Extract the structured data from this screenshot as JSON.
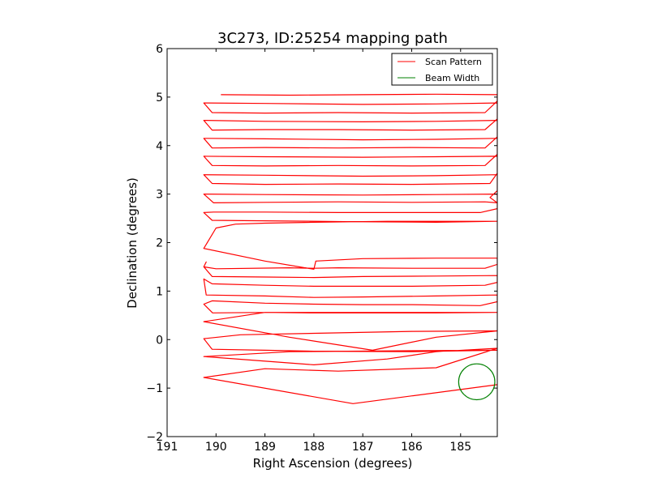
{
  "chart_data": {
    "type": "line",
    "title": "3C273, ID:25254 mapping path",
    "xlabel": "Right Ascension (degrees)",
    "ylabel": "Declination (degrees)",
    "xlim": [
      191.0,
      184.25
    ],
    "ylim": [
      -2,
      6
    ],
    "x_ticks": [
      191,
      190,
      189,
      188,
      187,
      186,
      185
    ],
    "x_tick_labels": [
      "191",
      "190",
      "189",
      "188",
      "187",
      "186",
      "185"
    ],
    "y_ticks": [
      -2,
      -1,
      0,
      1,
      2,
      3,
      4,
      5,
      6
    ],
    "y_tick_labels": [
      "−2",
      "−1",
      "0",
      "1",
      "2",
      "3",
      "4",
      "5",
      "6"
    ],
    "grid": false,
    "legend": {
      "placement": "top-right",
      "entries": [
        "Scan Pattern",
        "Beam Width"
      ]
    },
    "series": [
      {
        "name": "Scan Pattern",
        "color": "#ff0000",
        "points": [
          [
            189.9,
            5.05
          ],
          [
            188.5,
            5.04
          ],
          [
            187.0,
            5.05
          ],
          [
            185.5,
            5.06
          ],
          [
            184.25,
            5.05
          ],
          [
            184.25,
            4.92
          ],
          [
            184.5,
            4.68
          ],
          [
            186.0,
            4.67
          ],
          [
            187.5,
            4.68
          ],
          [
            189.0,
            4.67
          ],
          [
            190.08,
            4.68
          ],
          [
            190.25,
            4.88
          ],
          [
            189.0,
            4.87
          ],
          [
            187.0,
            4.85
          ],
          [
            185.5,
            4.86
          ],
          [
            184.25,
            4.88
          ],
          [
            184.25,
            4.55
          ],
          [
            184.5,
            4.33
          ],
          [
            186.0,
            4.32
          ],
          [
            187.5,
            4.33
          ],
          [
            189.0,
            4.33
          ],
          [
            190.08,
            4.32
          ],
          [
            190.25,
            4.52
          ],
          [
            189.0,
            4.5
          ],
          [
            187.0,
            4.49
          ],
          [
            185.5,
            4.5
          ],
          [
            184.25,
            4.52
          ],
          [
            184.25,
            4.18
          ],
          [
            184.5,
            3.95
          ],
          [
            186.0,
            3.96
          ],
          [
            187.5,
            3.95
          ],
          [
            189.0,
            3.96
          ],
          [
            190.08,
            3.95
          ],
          [
            190.25,
            4.15
          ],
          [
            189.0,
            4.14
          ],
          [
            187.0,
            4.12
          ],
          [
            185.5,
            4.13
          ],
          [
            184.25,
            4.15
          ],
          [
            184.25,
            3.82
          ],
          [
            184.5,
            3.59
          ],
          [
            186.0,
            3.58
          ],
          [
            187.5,
            3.59
          ],
          [
            189.0,
            3.58
          ],
          [
            190.08,
            3.59
          ],
          [
            190.25,
            3.78
          ],
          [
            189.0,
            3.77
          ],
          [
            187.0,
            3.76
          ],
          [
            185.5,
            3.77
          ],
          [
            184.25,
            3.78
          ],
          [
            184.25,
            3.43
          ],
          [
            184.4,
            3.22
          ],
          [
            186.0,
            3.2
          ],
          [
            187.5,
            3.21
          ],
          [
            189.0,
            3.2
          ],
          [
            190.08,
            3.22
          ],
          [
            190.25,
            3.4
          ],
          [
            189.0,
            3.39
          ],
          [
            187.0,
            3.37
          ],
          [
            185.5,
            3.38
          ],
          [
            184.25,
            3.4
          ],
          [
            184.25,
            3.07
          ],
          [
            184.4,
            2.93
          ],
          [
            184.25,
            2.82
          ],
          [
            184.5,
            2.84
          ],
          [
            186.0,
            2.83
          ],
          [
            187.5,
            2.84
          ],
          [
            189.0,
            2.83
          ],
          [
            190.05,
            2.82
          ],
          [
            190.25,
            3.0
          ],
          [
            189.0,
            2.99
          ],
          [
            187.0,
            2.98
          ],
          [
            185.5,
            2.99
          ],
          [
            184.25,
            3.0
          ],
          [
            184.25,
            2.7
          ],
          [
            184.6,
            2.62
          ],
          [
            186.0,
            2.62
          ],
          [
            187.5,
            2.62
          ],
          [
            189.0,
            2.63
          ],
          [
            190.05,
            2.63
          ],
          [
            190.25,
            2.62
          ],
          [
            190.08,
            2.46
          ],
          [
            189.0,
            2.45
          ],
          [
            187.0,
            2.43
          ],
          [
            185.5,
            2.42
          ],
          [
            184.25,
            2.44
          ],
          [
            185.0,
            2.44
          ],
          [
            186.5,
            2.44
          ],
          [
            188.0,
            2.42
          ],
          [
            189.0,
            2.4
          ],
          [
            189.6,
            2.38
          ],
          [
            190.0,
            2.3
          ],
          [
            190.25,
            1.88
          ],
          [
            189.0,
            1.62
          ],
          [
            188.0,
            1.45
          ],
          [
            187.96,
            1.62
          ],
          [
            187.0,
            1.67
          ],
          [
            185.5,
            1.68
          ],
          [
            184.25,
            1.68
          ],
          [
            184.25,
            1.55
          ],
          [
            184.5,
            1.47
          ],
          [
            186.0,
            1.47
          ],
          [
            187.5,
            1.48
          ],
          [
            188.0,
            1.47
          ],
          [
            188.5,
            1.48
          ],
          [
            190.0,
            1.46
          ],
          [
            190.25,
            1.5
          ],
          [
            190.2,
            1.6
          ],
          [
            190.25,
            1.5
          ],
          [
            190.08,
            1.3
          ],
          [
            189.0,
            1.29
          ],
          [
            188.0,
            1.28
          ],
          [
            187.0,
            1.3
          ],
          [
            185.5,
            1.31
          ],
          [
            184.25,
            1.32
          ],
          [
            184.25,
            1.18
          ],
          [
            184.5,
            1.12
          ],
          [
            186.0,
            1.1
          ],
          [
            187.0,
            1.1
          ],
          [
            188.0,
            1.1
          ],
          [
            189.0,
            1.12
          ],
          [
            190.08,
            1.15
          ],
          [
            190.25,
            1.25
          ],
          [
            190.2,
            0.92
          ],
          [
            189.0,
            0.9
          ],
          [
            188.0,
            0.87
          ],
          [
            187.0,
            0.88
          ],
          [
            185.5,
            0.9
          ],
          [
            184.25,
            0.92
          ],
          [
            184.25,
            0.78
          ],
          [
            184.6,
            0.7
          ],
          [
            186.0,
            0.72
          ],
          [
            187.0,
            0.72
          ],
          [
            188.0,
            0.73
          ],
          [
            189.0,
            0.75
          ],
          [
            190.08,
            0.8
          ],
          [
            190.25,
            0.73
          ],
          [
            190.07,
            0.55
          ],
          [
            189.0,
            0.56
          ],
          [
            188.0,
            0.55
          ],
          [
            187.0,
            0.55
          ],
          [
            185.5,
            0.55
          ],
          [
            184.25,
            0.56
          ],
          [
            189.0,
            0.56
          ],
          [
            190.25,
            0.37
          ],
          [
            188.5,
            0.05
          ],
          [
            186.8,
            -0.22
          ],
          [
            185.5,
            0.05
          ],
          [
            184.25,
            0.18
          ],
          [
            186.0,
            0.17
          ],
          [
            188.0,
            0.13
          ],
          [
            189.5,
            0.1
          ],
          [
            190.25,
            0.02
          ],
          [
            190.08,
            -0.2
          ],
          [
            189.0,
            -0.22
          ],
          [
            188.0,
            -0.24
          ],
          [
            186.0,
            -0.25
          ],
          [
            184.25,
            -0.22
          ],
          [
            186.0,
            -0.23
          ],
          [
            188.5,
            -0.25
          ],
          [
            190.25,
            -0.35
          ],
          [
            188.0,
            -0.52
          ],
          [
            186.5,
            -0.4
          ],
          [
            185.5,
            -0.25
          ],
          [
            184.25,
            -0.18
          ],
          [
            185.5,
            -0.58
          ],
          [
            187.5,
            -0.65
          ],
          [
            189.0,
            -0.6
          ],
          [
            190.25,
            -0.78
          ],
          [
            187.2,
            -1.32
          ],
          [
            184.25,
            -0.93
          ]
        ]
      }
    ],
    "beam": {
      "name": "Beam Width",
      "color": "#008000",
      "center": [
        184.67,
        -0.87
      ],
      "radius_x": 0.37,
      "radius_y": 0.37
    }
  }
}
